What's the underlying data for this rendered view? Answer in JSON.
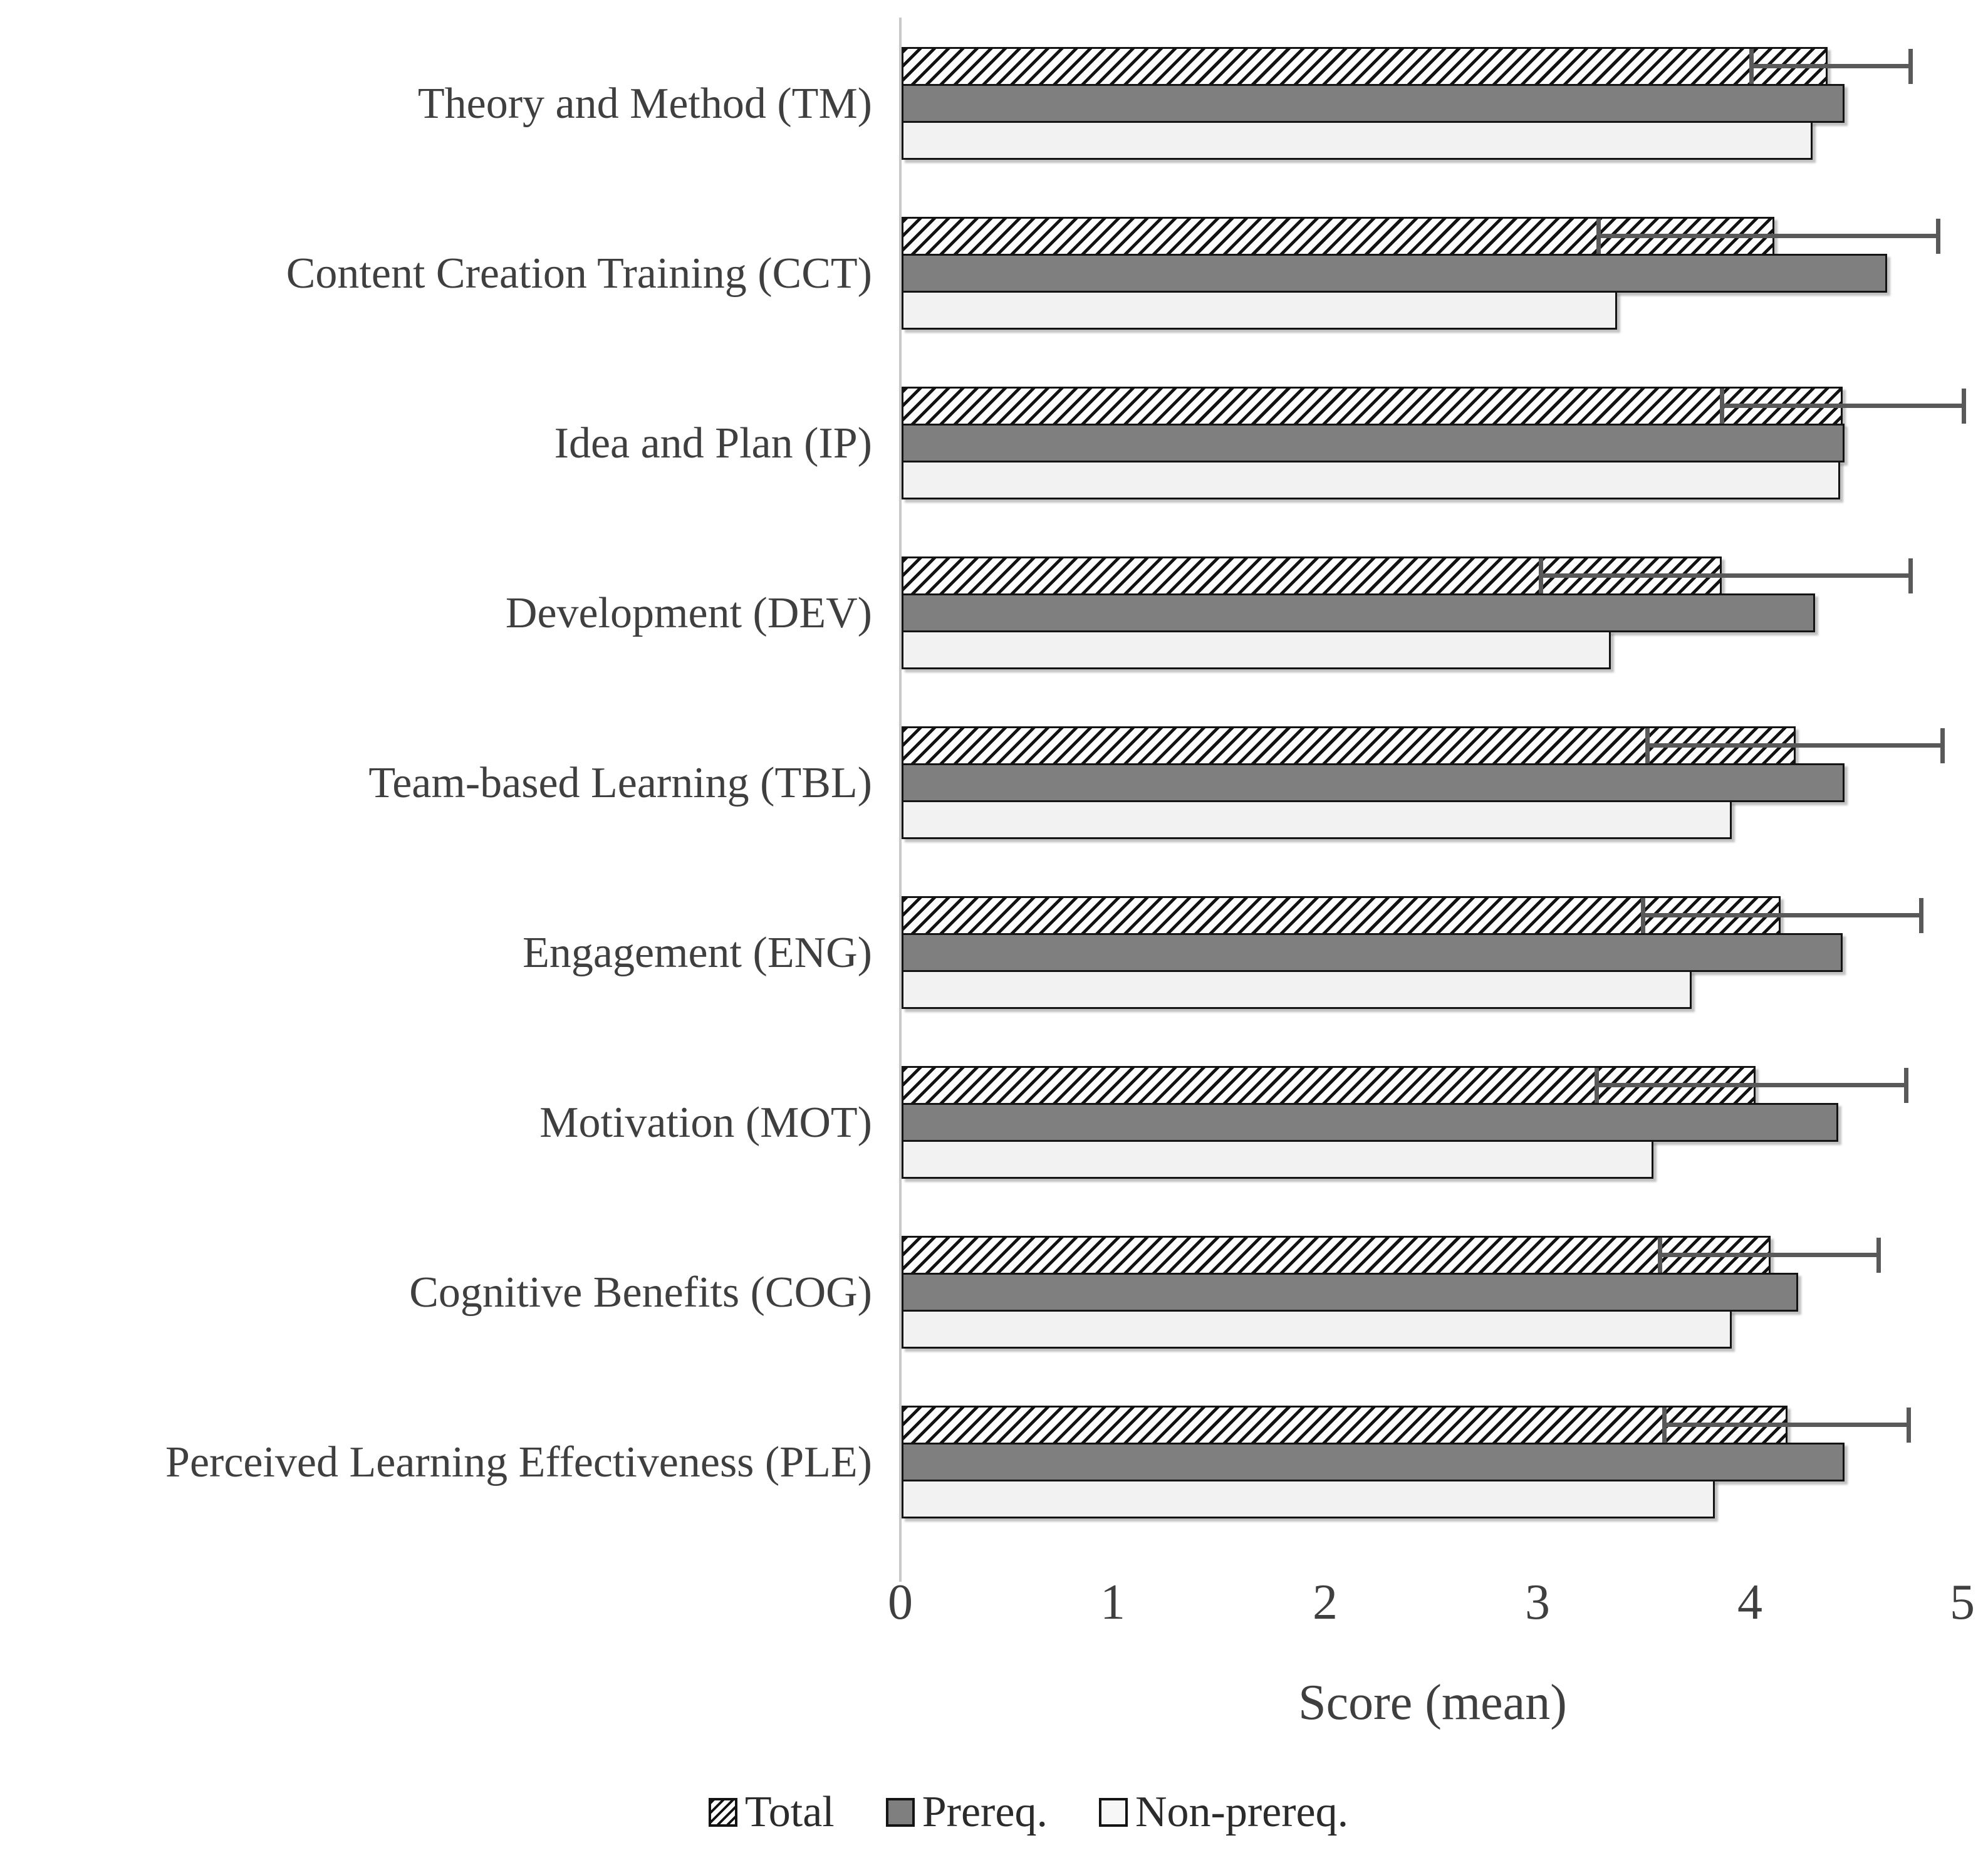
{
  "chart_data": {
    "type": "bar",
    "orientation": "horizontal",
    "xlabel": "Score (mean)",
    "xlim": [
      0,
      5
    ],
    "x_ticks": [
      "0",
      "1",
      "2",
      "3",
      "4",
      "5"
    ],
    "grid": false,
    "legend_position": "bottom",
    "categories": [
      "Theory and Method (TM)",
      "Content Creation Training (CCT)",
      "Idea and Plan (IP)",
      "Development (DEV)",
      "Team-based Learning (TBL)",
      "Engagement (ENG)",
      "Motivation (MOT)",
      "Cognitive Benefits (COG)",
      "Perceived Learning Effectiveness (PLE)"
    ],
    "series": [
      {
        "name": "Total",
        "style": "black-hatched",
        "values": [
          4.36,
          4.11,
          4.43,
          3.86,
          4.21,
          4.14,
          4.02,
          4.09,
          4.17
        ],
        "error_low": [
          4.0,
          3.28,
          3.86,
          3.01,
          3.51,
          3.49,
          3.27,
          3.57,
          3.59
        ],
        "error_high": [
          4.75,
          4.88,
          5.0,
          4.75,
          4.9,
          4.8,
          4.73,
          4.6,
          4.74
        ]
      },
      {
        "name": "Prereq.",
        "style": "solid-dark-gray",
        "values": [
          4.44,
          4.64,
          4.44,
          4.3,
          4.44,
          4.43,
          4.41,
          4.22,
          4.44
        ]
      },
      {
        "name": "Non-prereq.",
        "style": "solid-light-gray",
        "values": [
          4.29,
          3.37,
          4.42,
          3.34,
          3.91,
          3.72,
          3.54,
          3.91,
          3.83
        ]
      }
    ],
    "colors": {
      "hatch": "#111111",
      "prereq_fill": "#7f7f7f",
      "nonprereq_fill": "#f2f2f2",
      "bar_border": "#141414",
      "error_bar": "#595959",
      "axis_line": "#c9c9c9",
      "text": "#3f3f3f"
    }
  }
}
